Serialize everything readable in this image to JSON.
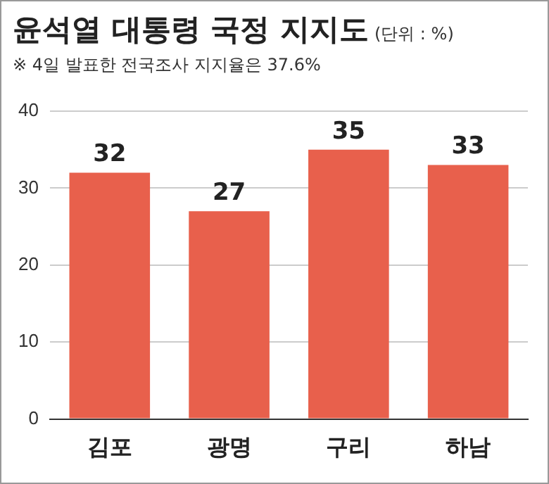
{
  "chart_data": {
    "type": "bar",
    "title": "윤석열 대통령 국정 지지도",
    "subtitle": "※ 4일 발표한 전국조사 지지율은 37.6%",
    "annotations": [
      "(단위 : %)"
    ],
    "categories": [
      "김포",
      "광명",
      "구리",
      "하남"
    ],
    "values": [
      32,
      27,
      35,
      33
    ],
    "color": "#e8604c",
    "ylim": [
      0,
      40
    ],
    "yticks": [
      0,
      10,
      20,
      30,
      40
    ],
    "grid": "y",
    "data_labels": true
  }
}
